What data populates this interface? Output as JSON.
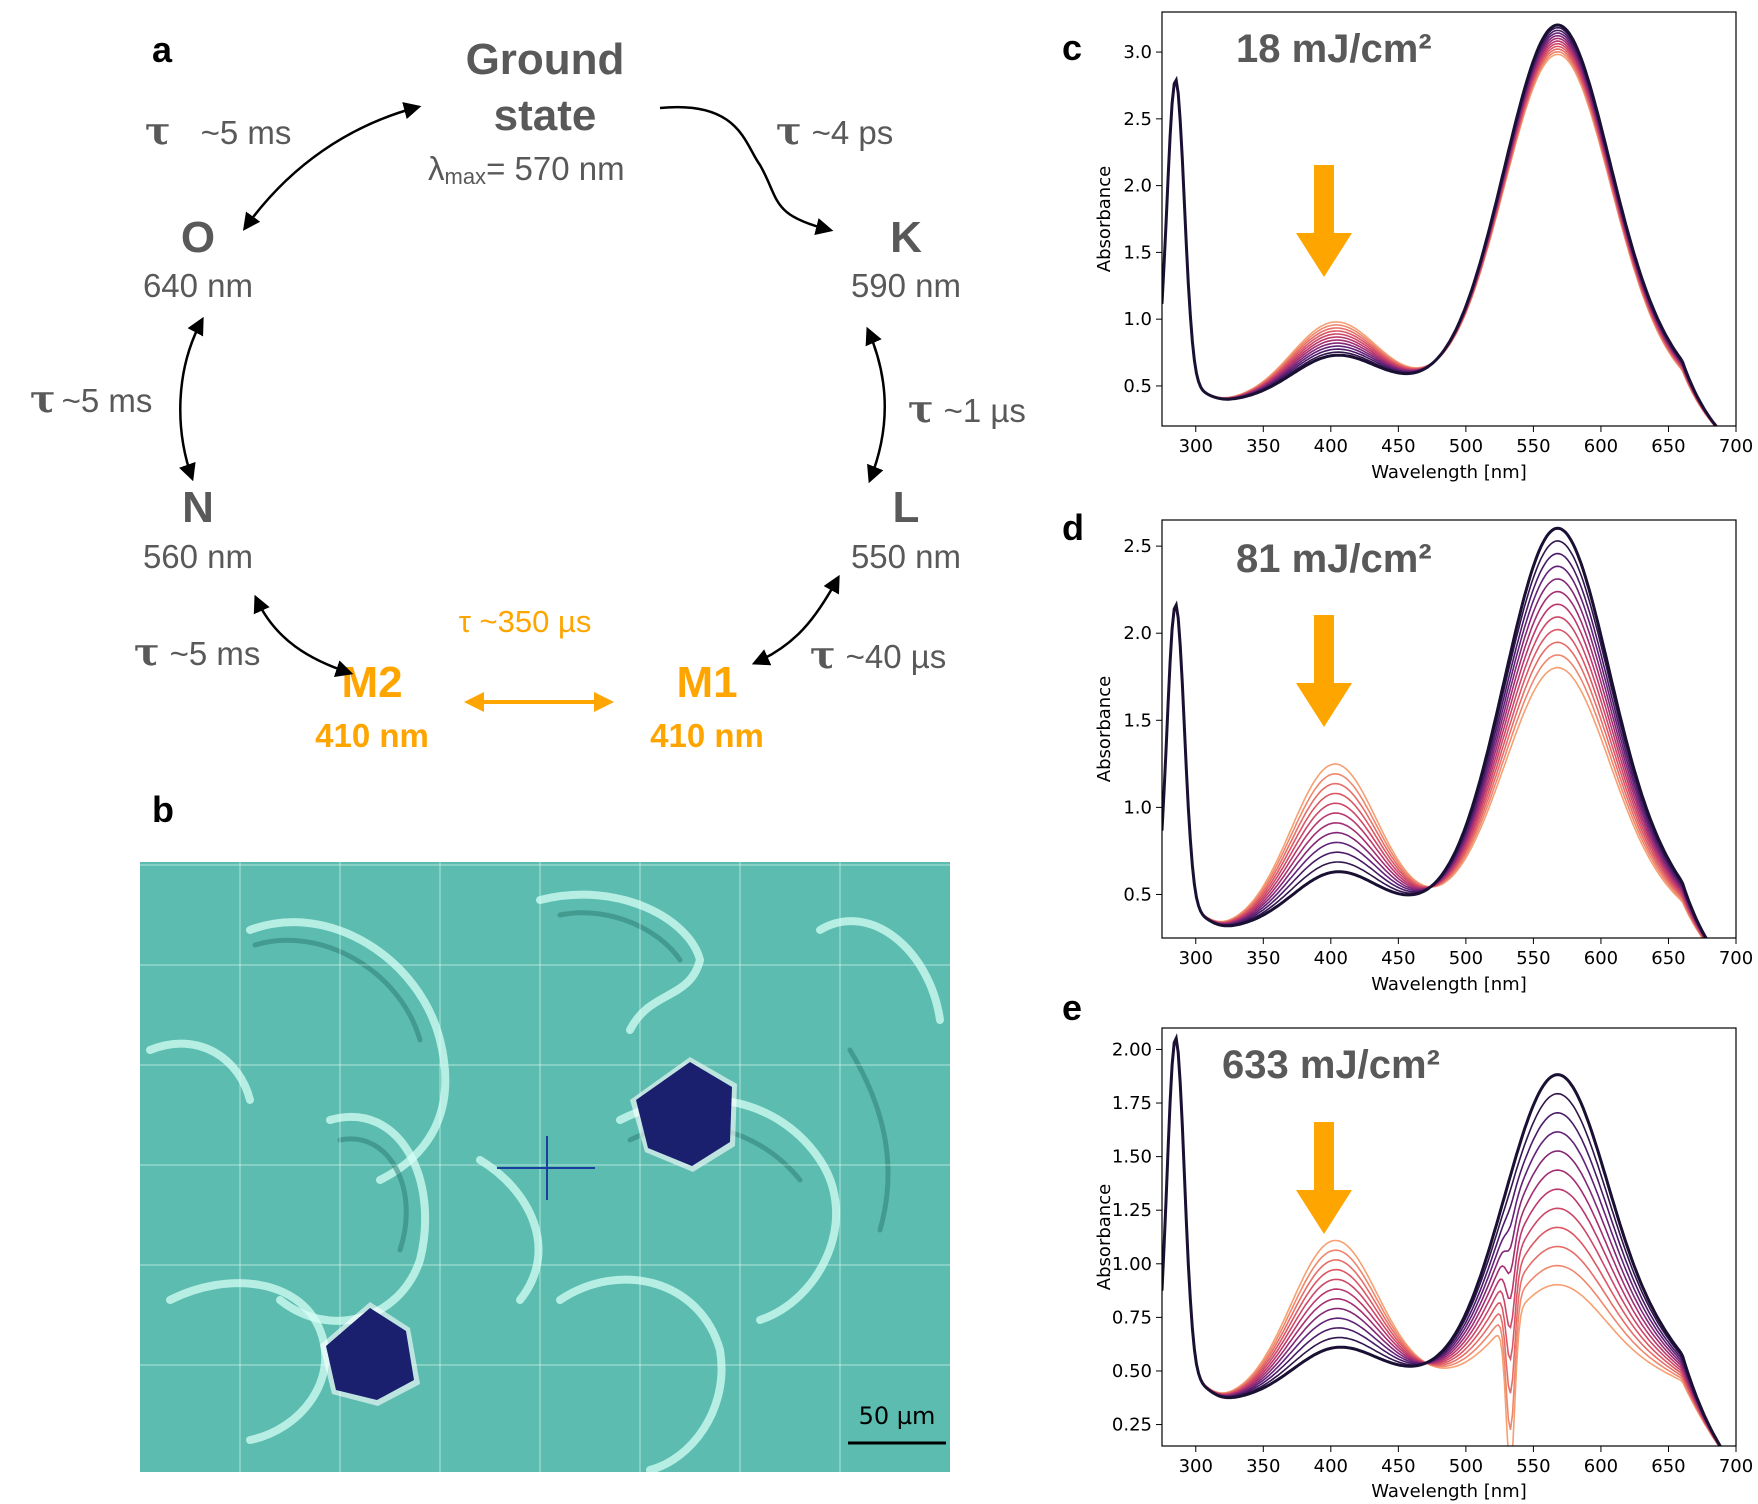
{
  "panels": {
    "a": "a",
    "b": "b",
    "c": "c",
    "d": "d",
    "e": "e"
  },
  "photocycle": {
    "ground": {
      "line1": "Ground",
      "line2": "state",
      "lambda_prefix": "λ",
      "lambda_sub": "max",
      "lambda_value": "= 570 nm"
    },
    "K": {
      "name": "K",
      "wl": "590 nm"
    },
    "L": {
      "name": "L",
      "wl": "550 nm"
    },
    "M1": {
      "name": "M1",
      "wl": "410 nm"
    },
    "M2": {
      "name": "M2",
      "wl": "410 nm"
    },
    "N": {
      "name": "N",
      "wl": "560 nm"
    },
    "O": {
      "name": "O",
      "wl": "640 nm"
    },
    "tau_symbol": "τ",
    "tau_ground_K": "~4 ps",
    "tau_K_L": "~1 µs",
    "tau_L_M1": "~40 µs",
    "tau_M1_M2": "τ ~350 µs",
    "tau_M2_N": "~5 ms",
    "tau_N_O": "~5 ms",
    "tau_O_ground": "~5 ms",
    "colors": {
      "gray": "#595959",
      "orange": "#ffa500"
    }
  },
  "micrograph": {
    "scale_bar": "50 µm",
    "colors": {
      "background": "#5fbfb2",
      "crystal": "#1a1f6e"
    }
  },
  "chart_data": [
    {
      "panel": "c",
      "type": "line",
      "title": "18 mJ/cm²",
      "xlabel": "Wavelength [nm]",
      "ylabel": "Absorbance",
      "xlim": [
        275,
        700
      ],
      "ylim": [
        0.2,
        3.3
      ],
      "xticks": [
        300,
        350,
        400,
        450,
        500,
        550,
        600,
        650,
        700
      ],
      "yticks": [
        "0.5",
        "1.0",
        "1.5",
        "2.0",
        "2.5",
        "3.0"
      ],
      "annotation": "downward orange arrow at 400 nm",
      "params": {
        "peak280": 2.77,
        "trough": 0.38,
        "peak570": [
          3.2,
          2.98
        ],
        "band410": [
          0.7,
          0.95
        ],
        "iso": 460,
        "dip": 0
      }
    },
    {
      "panel": "d",
      "type": "line",
      "title": "81 mJ/cm²",
      "xlabel": "Wavelength [nm]",
      "ylabel": "Absorbance",
      "xlim": [
        275,
        700
      ],
      "ylim": [
        0.25,
        2.65
      ],
      "xticks": [
        300,
        350,
        400,
        450,
        500,
        550,
        600,
        650,
        700
      ],
      "yticks": [
        "0.5",
        "1.0",
        "1.5",
        "2.0",
        "2.5"
      ],
      "annotation": "downward orange arrow at 400 nm",
      "params": {
        "peak280": 2.14,
        "trough": 0.3,
        "peak570": [
          2.6,
          1.8
        ],
        "band410": [
          0.6,
          1.22
        ],
        "iso": 455,
        "dip": 0
      }
    },
    {
      "panel": "e",
      "type": "line",
      "title": "633 mJ/cm²",
      "xlabel": "Wavelength [nm]",
      "ylabel": "Absorbance",
      "xlim": [
        275,
        700
      ],
      "ylim": [
        0.15,
        2.1
      ],
      "xticks": [
        300,
        350,
        400,
        450,
        500,
        550,
        600,
        650,
        700
      ],
      "yticks": [
        "0.25",
        "0.50",
        "0.75",
        "1.00",
        "1.25",
        "1.50",
        "1.75",
        "2.00"
      ],
      "annotation": "downward orange arrow at 400 nm",
      "params": {
        "peak280": 2.03,
        "trough": 0.36,
        "peak570": [
          1.88,
          0.9
        ],
        "band410": [
          0.58,
          1.08
        ],
        "iso": 458,
        "dip": 0.7
      }
    }
  ]
}
